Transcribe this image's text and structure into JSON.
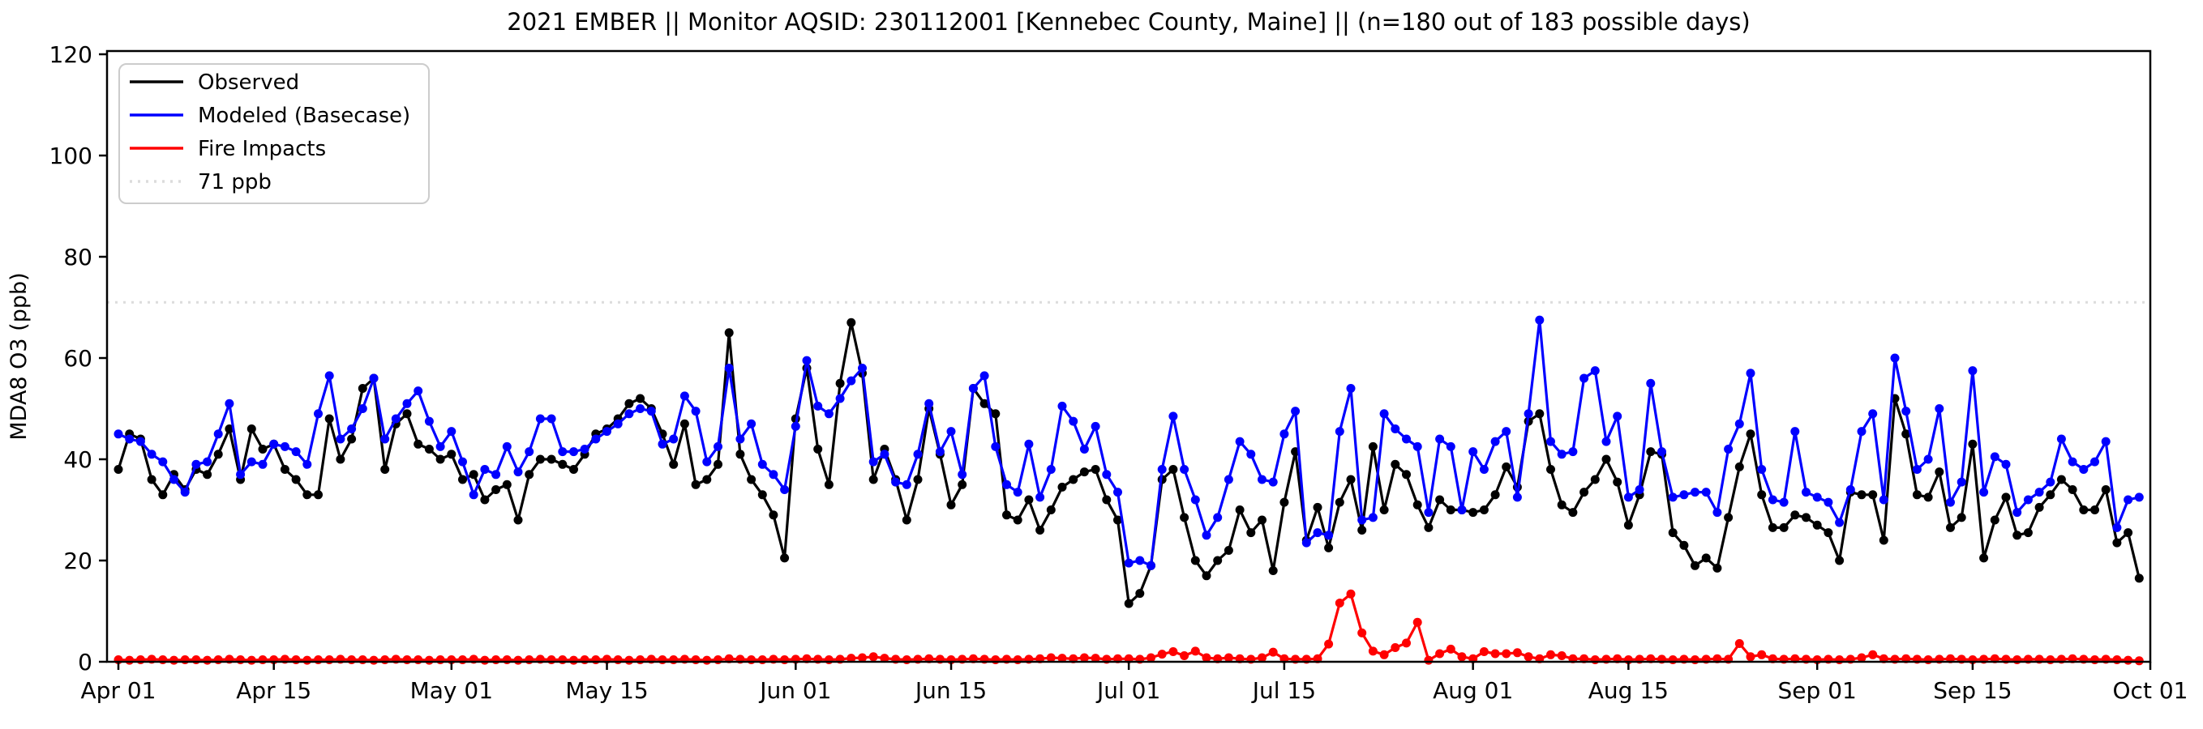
{
  "page": {
    "background": "#ffffff"
  },
  "chart_data": {
    "type": "line",
    "title": "2021 EMBER || Monitor AQSID: 230112001 [Kennebec County, Maine] || (n=180 out of 183 possible days)",
    "xlabel": "",
    "ylabel": "MDA8 O3 (ppb)",
    "ylim": [
      0,
      120
    ],
    "yticks": [
      0,
      20,
      40,
      60,
      80,
      100,
      120
    ],
    "x_tick_labels": [
      "Apr 01",
      "Apr 15",
      "May 01",
      "May 15",
      "Jun 01",
      "Jun 15",
      "Jul 01",
      "Jul 15",
      "Aug 01",
      "Aug 15",
      "Sep 01",
      "Sep 15",
      "Oct 01"
    ],
    "x_tick_positions": [
      0,
      14,
      30,
      44,
      61,
      75,
      91,
      105,
      122,
      136,
      153,
      167,
      183
    ],
    "x_range_days": 183,
    "grid": false,
    "legend_position": "upper-left",
    "marker": "circle",
    "reference_line": {
      "label": "71 ppb",
      "value": 71,
      "color": "#dcdcdc",
      "style": "dotted"
    },
    "series": [
      {
        "name": "Observed",
        "color": "#000000",
        "values": [
          38,
          45,
          44,
          36,
          33,
          37,
          34,
          38,
          37,
          41,
          46,
          36,
          46,
          42,
          43,
          38,
          36,
          33,
          33,
          48,
          40,
          44,
          54,
          56,
          38,
          47,
          49,
          43,
          42,
          40,
          41,
          36,
          37,
          32,
          34,
          35,
          28,
          37,
          40,
          40,
          39,
          38,
          41,
          45,
          46,
          48,
          51,
          52,
          50,
          45,
          39,
          47,
          35,
          36,
          39,
          65,
          41,
          36,
          33,
          29,
          20.5,
          48,
          58,
          42,
          35,
          55,
          67,
          57,
          36,
          42,
          36,
          28,
          36,
          50,
          41,
          31,
          35,
          54,
          51,
          49,
          29,
          28,
          32,
          26,
          30,
          34.5,
          36,
          37.5,
          38,
          32,
          28,
          11.5,
          13.5,
          19,
          36,
          38,
          28.5,
          20,
          17,
          20,
          22,
          30,
          25.5,
          28,
          18,
          31.5,
          41.5,
          24,
          30.5,
          22.5,
          31.5,
          36,
          26,
          42.5,
          30,
          39,
          37,
          31,
          26.5,
          32,
          30,
          30,
          29.5,
          30,
          33,
          38.5,
          34.5,
          47.5,
          49,
          38,
          31,
          29.5,
          33.5,
          36,
          40,
          35.5,
          27,
          33,
          41.5,
          41,
          25.5,
          23,
          19,
          20.5,
          18.5,
          28.5,
          38.5,
          45,
          33,
          26.5,
          26.5,
          29,
          28.5,
          27,
          25.5,
          20,
          33.5,
          33,
          33,
          24,
          52,
          45,
          33,
          32.5,
          37.5,
          26.5,
          28.5,
          43,
          20.5,
          28,
          32.5,
          25,
          25.5,
          30.5,
          33,
          36,
          34,
          30,
          30,
          34,
          23.5,
          25.5,
          16.5
        ]
      },
      {
        "name": "Modeled (Basecase)",
        "color": "#0000ff",
        "values": [
          45,
          44,
          43.5,
          41,
          39.5,
          36,
          33.5,
          39,
          39.5,
          45,
          51,
          37,
          39.5,
          39,
          43,
          42.5,
          41.5,
          39,
          49,
          56.5,
          44,
          46,
          50,
          56,
          44,
          48,
          51,
          53.5,
          47.5,
          42.5,
          45.5,
          39.5,
          33,
          38,
          37,
          42.5,
          37.5,
          41.5,
          48,
          48,
          41.5,
          41.5,
          42,
          44,
          45.5,
          47,
          49,
          50,
          49.5,
          43,
          44,
          52.5,
          49.5,
          39.5,
          42.5,
          58,
          44,
          47,
          39,
          37,
          34,
          46.5,
          59.5,
          50.5,
          49,
          52,
          55.5,
          58,
          39.5,
          41,
          35.5,
          35,
          41,
          51,
          41.5,
          45.5,
          37,
          54,
          56.5,
          42.5,
          35,
          33.5,
          43,
          32.5,
          38,
          50.5,
          47.5,
          42,
          46.5,
          37,
          33.5,
          19.5,
          20,
          19,
          38,
          48.5,
          38,
          32,
          25,
          28.5,
          36,
          43.5,
          41,
          36,
          35.5,
          45,
          49.5,
          23.5,
          25.5,
          25,
          45.5,
          54,
          28,
          28.5,
          49,
          46,
          44,
          42.5,
          29.5,
          44,
          42.5,
          30,
          41.5,
          38,
          43.5,
          45.5,
          32.5,
          49,
          67.5,
          43.5,
          41,
          41.5,
          56,
          57.5,
          43.5,
          48.5,
          32.5,
          34,
          55,
          41.5,
          32.5,
          33,
          33.5,
          33.5,
          29.5,
          42,
          47,
          57,
          38,
          32,
          31.5,
          45.5,
          33.5,
          32.5,
          31.5,
          27.5,
          34,
          45.5,
          49,
          32,
          60,
          49.5,
          38,
          40,
          50,
          31.5,
          35.5,
          57.5,
          33.5,
          40.5,
          39,
          29.5,
          32,
          33.5,
          35.5,
          44,
          39.5,
          38,
          39.5,
          43.5,
          26.5,
          32,
          32.5
        ]
      },
      {
        "name": "Fire Impacts",
        "color": "#ff0000",
        "values": [
          0.4,
          0.3,
          0.4,
          0.5,
          0.4,
          0.3,
          0.4,
          0.4,
          0.3,
          0.4,
          0.5,
          0.4,
          0.3,
          0.4,
          0.4,
          0.5,
          0.4,
          0.3,
          0.4,
          0.4,
          0.5,
          0.4,
          0.4,
          0.3,
          0.4,
          0.5,
          0.4,
          0.4,
          0.3,
          0.4,
          0.4,
          0.4,
          0.5,
          0.3,
          0.4,
          0.4,
          0.3,
          0.4,
          0.5,
          0.4,
          0.4,
          0.3,
          0.4,
          0.4,
          0.5,
          0.4,
          0.3,
          0.4,
          0.5,
          0.4,
          0.4,
          0.5,
          0.4,
          0.3,
          0.4,
          0.6,
          0.5,
          0.4,
          0.4,
          0.5,
          0.4,
          0.5,
          0.6,
          0.5,
          0.4,
          0.5,
          0.7,
          0.8,
          1,
          0.7,
          0.5,
          0.4,
          0.5,
          0.6,
          0.5,
          0.4,
          0.5,
          0.6,
          0.5,
          0.4,
          0.5,
          0.4,
          0.5,
          0.6,
          0.8,
          0.7,
          0.6,
          0.8,
          0.7,
          0.5,
          0.6,
          0.6,
          0.5,
          0.8,
          1.5,
          2,
          1.2,
          2.1,
          0.8,
          0.6,
          0.8,
          0.6,
          0.5,
          0.8,
          1.9,
          0.6,
          0.5,
          0.5,
          0.6,
          3.5,
          11.6,
          13.4,
          5.7,
          2.1,
          1.4,
          2.8,
          3.7,
          7.8,
          0.3,
          1.6,
          2.5,
          1,
          0.6,
          2,
          1.6,
          1.6,
          1.8,
          1,
          0.6,
          1.4,
          1.2,
          0.6,
          0.6,
          0.4,
          0.5,
          0.6,
          0.4,
          0.5,
          0.6,
          0.5,
          0.4,
          0.5,
          0.4,
          0.5,
          0.6,
          0.5,
          3.6,
          1,
          1.4,
          0.6,
          0.5,
          0.6,
          0.5,
          0.4,
          0.5,
          0.4,
          0.5,
          0.8,
          1.4,
          0.6,
          0.5,
          0.6,
          0.5,
          0.4,
          0.5,
          0.6,
          0.5,
          0.4,
          0.5,
          0.6,
          0.5,
          0.4,
          0.5,
          0.5,
          0.4,
          0.5,
          0.6,
          0.5,
          0.4,
          0.5,
          0.4,
          0.3,
          0.2
        ]
      }
    ]
  }
}
